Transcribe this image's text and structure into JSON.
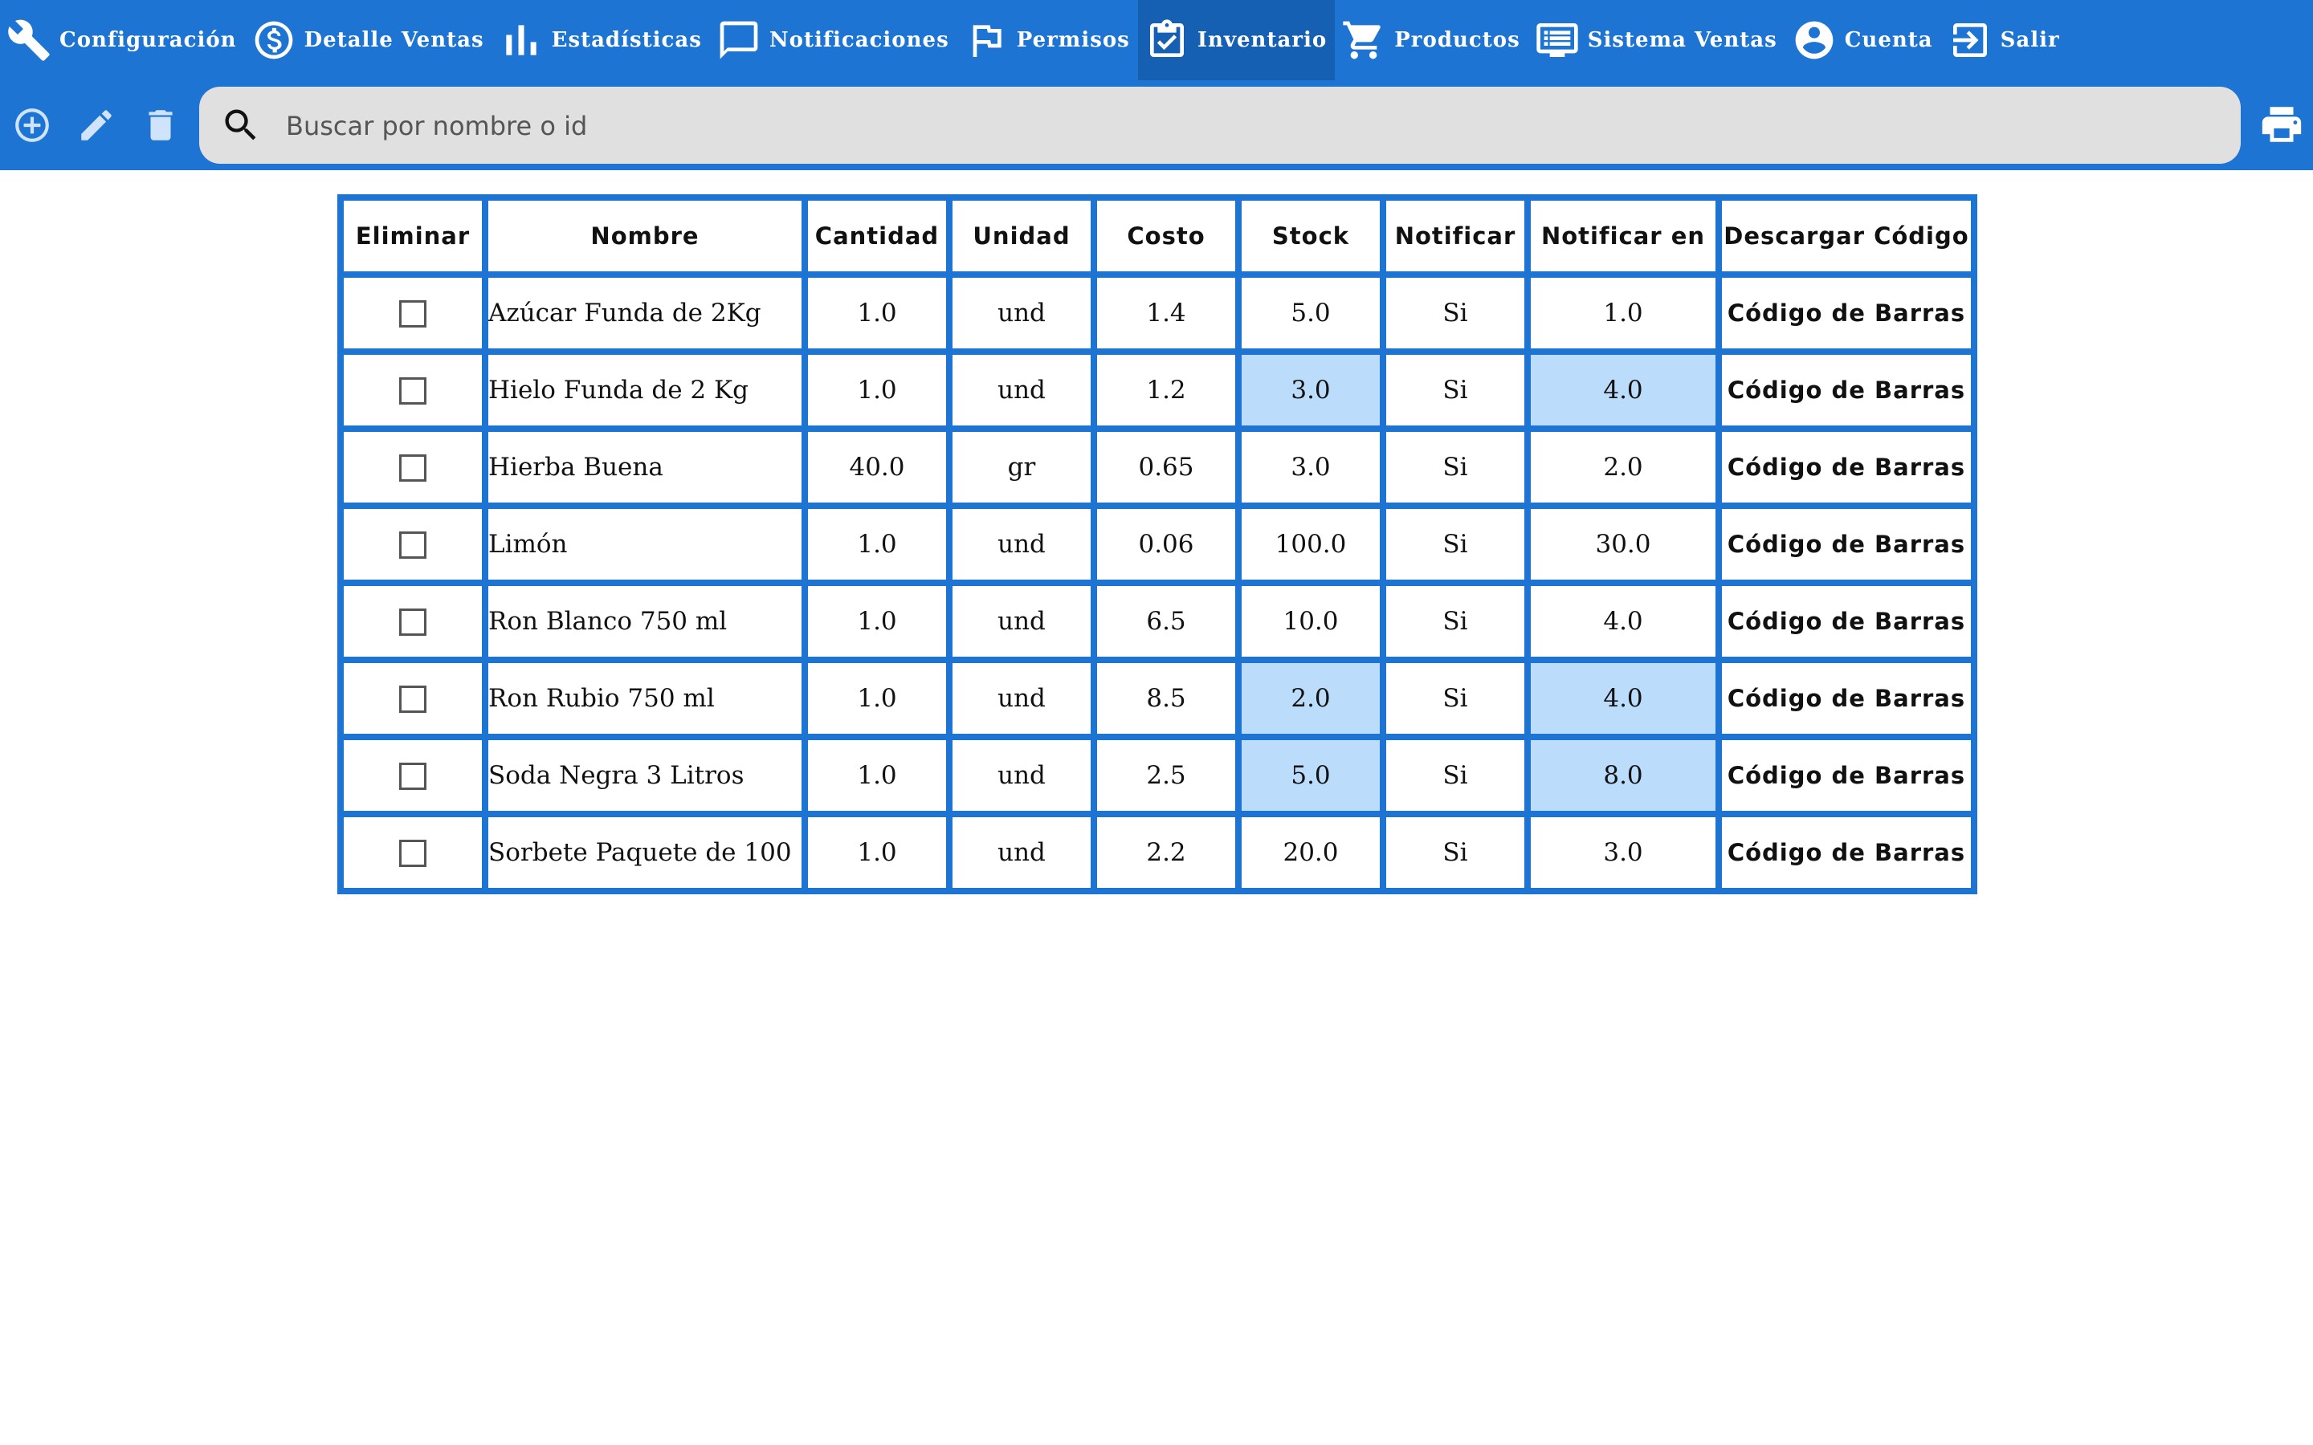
{
  "theme": {
    "primary": "#1e74d2",
    "active_tab": "#1560b3",
    "search_bg": "#e0e0e0",
    "alert_cell": "#bbdcfa"
  },
  "nav": {
    "active": "Inventario",
    "items": [
      {
        "label": "Configuración",
        "icon": "wrench-icon"
      },
      {
        "label": "Detalle Ventas",
        "icon": "dollar-circle-icon"
      },
      {
        "label": "Estadísticas",
        "icon": "bar-chart-icon"
      },
      {
        "label": "Notificaciones",
        "icon": "chat-bubble-icon"
      },
      {
        "label": "Permisos",
        "icon": "flag-icon"
      },
      {
        "label": "Inventario",
        "icon": "clipboard-check-icon"
      },
      {
        "label": "Productos",
        "icon": "shopping-cart-icon"
      },
      {
        "label": "Sistema Ventas",
        "icon": "list-screen-icon"
      },
      {
        "label": "Cuenta",
        "icon": "account-circle-icon"
      },
      {
        "label": "Salir",
        "icon": "logout-icon"
      }
    ]
  },
  "toolbar": {
    "add_icon": "add-circle-icon",
    "edit_icon": "pencil-icon",
    "delete_icon": "trash-icon",
    "print_icon": "printer-icon"
  },
  "search": {
    "placeholder": "Buscar por nombre o id",
    "value": ""
  },
  "table": {
    "columns": [
      "Eliminar",
      "Nombre",
      "Cantidad",
      "Unidad",
      "Costo",
      "Stock",
      "Notificar",
      "Notificar en",
      "Descargar Código"
    ],
    "rows": [
      {
        "checked": false,
        "nombre": "Azúcar Funda de 2Kg",
        "cantidad": "1.0",
        "unidad": "und",
        "costo": "1.4",
        "stock": "5.0",
        "notificar": "Si",
        "notificar_en": "1.0",
        "descargar": "Código de Barras",
        "low_stock": false
      },
      {
        "checked": false,
        "nombre": "Hielo Funda de 2 Kg",
        "cantidad": "1.0",
        "unidad": "und",
        "costo": "1.2",
        "stock": "3.0",
        "notificar": "Si",
        "notificar_en": "4.0",
        "descargar": "Código de Barras",
        "low_stock": true
      },
      {
        "checked": false,
        "nombre": "Hierba Buena",
        "cantidad": "40.0",
        "unidad": "gr",
        "costo": "0.65",
        "stock": "3.0",
        "notificar": "Si",
        "notificar_en": "2.0",
        "descargar": "Código de Barras",
        "low_stock": false
      },
      {
        "checked": false,
        "nombre": "Limón",
        "cantidad": "1.0",
        "unidad": "und",
        "costo": "0.06",
        "stock": "100.0",
        "notificar": "Si",
        "notificar_en": "30.0",
        "descargar": "Código de Barras",
        "low_stock": false
      },
      {
        "checked": false,
        "nombre": "Ron Blanco 750 ml",
        "cantidad": "1.0",
        "unidad": "und",
        "costo": "6.5",
        "stock": "10.0",
        "notificar": "Si",
        "notificar_en": "4.0",
        "descargar": "Código de Barras",
        "low_stock": false
      },
      {
        "checked": false,
        "nombre": "Ron Rubio 750 ml",
        "cantidad": "1.0",
        "unidad": "und",
        "costo": "8.5",
        "stock": "2.0",
        "notificar": "Si",
        "notificar_en": "4.0",
        "descargar": "Código de Barras",
        "low_stock": true
      },
      {
        "checked": false,
        "nombre": "Soda Negra 3 Litros",
        "cantidad": "1.0",
        "unidad": "und",
        "costo": "2.5",
        "stock": "5.0",
        "notificar": "Si",
        "notificar_en": "8.0",
        "descargar": "Código de Barras",
        "low_stock": true
      },
      {
        "checked": false,
        "nombre": "Sorbete Paquete de 100",
        "cantidad": "1.0",
        "unidad": "und",
        "costo": "2.2",
        "stock": "20.0",
        "notificar": "Si",
        "notificar_en": "3.0",
        "descargar": "Código de Barras",
        "low_stock": false
      }
    ]
  }
}
